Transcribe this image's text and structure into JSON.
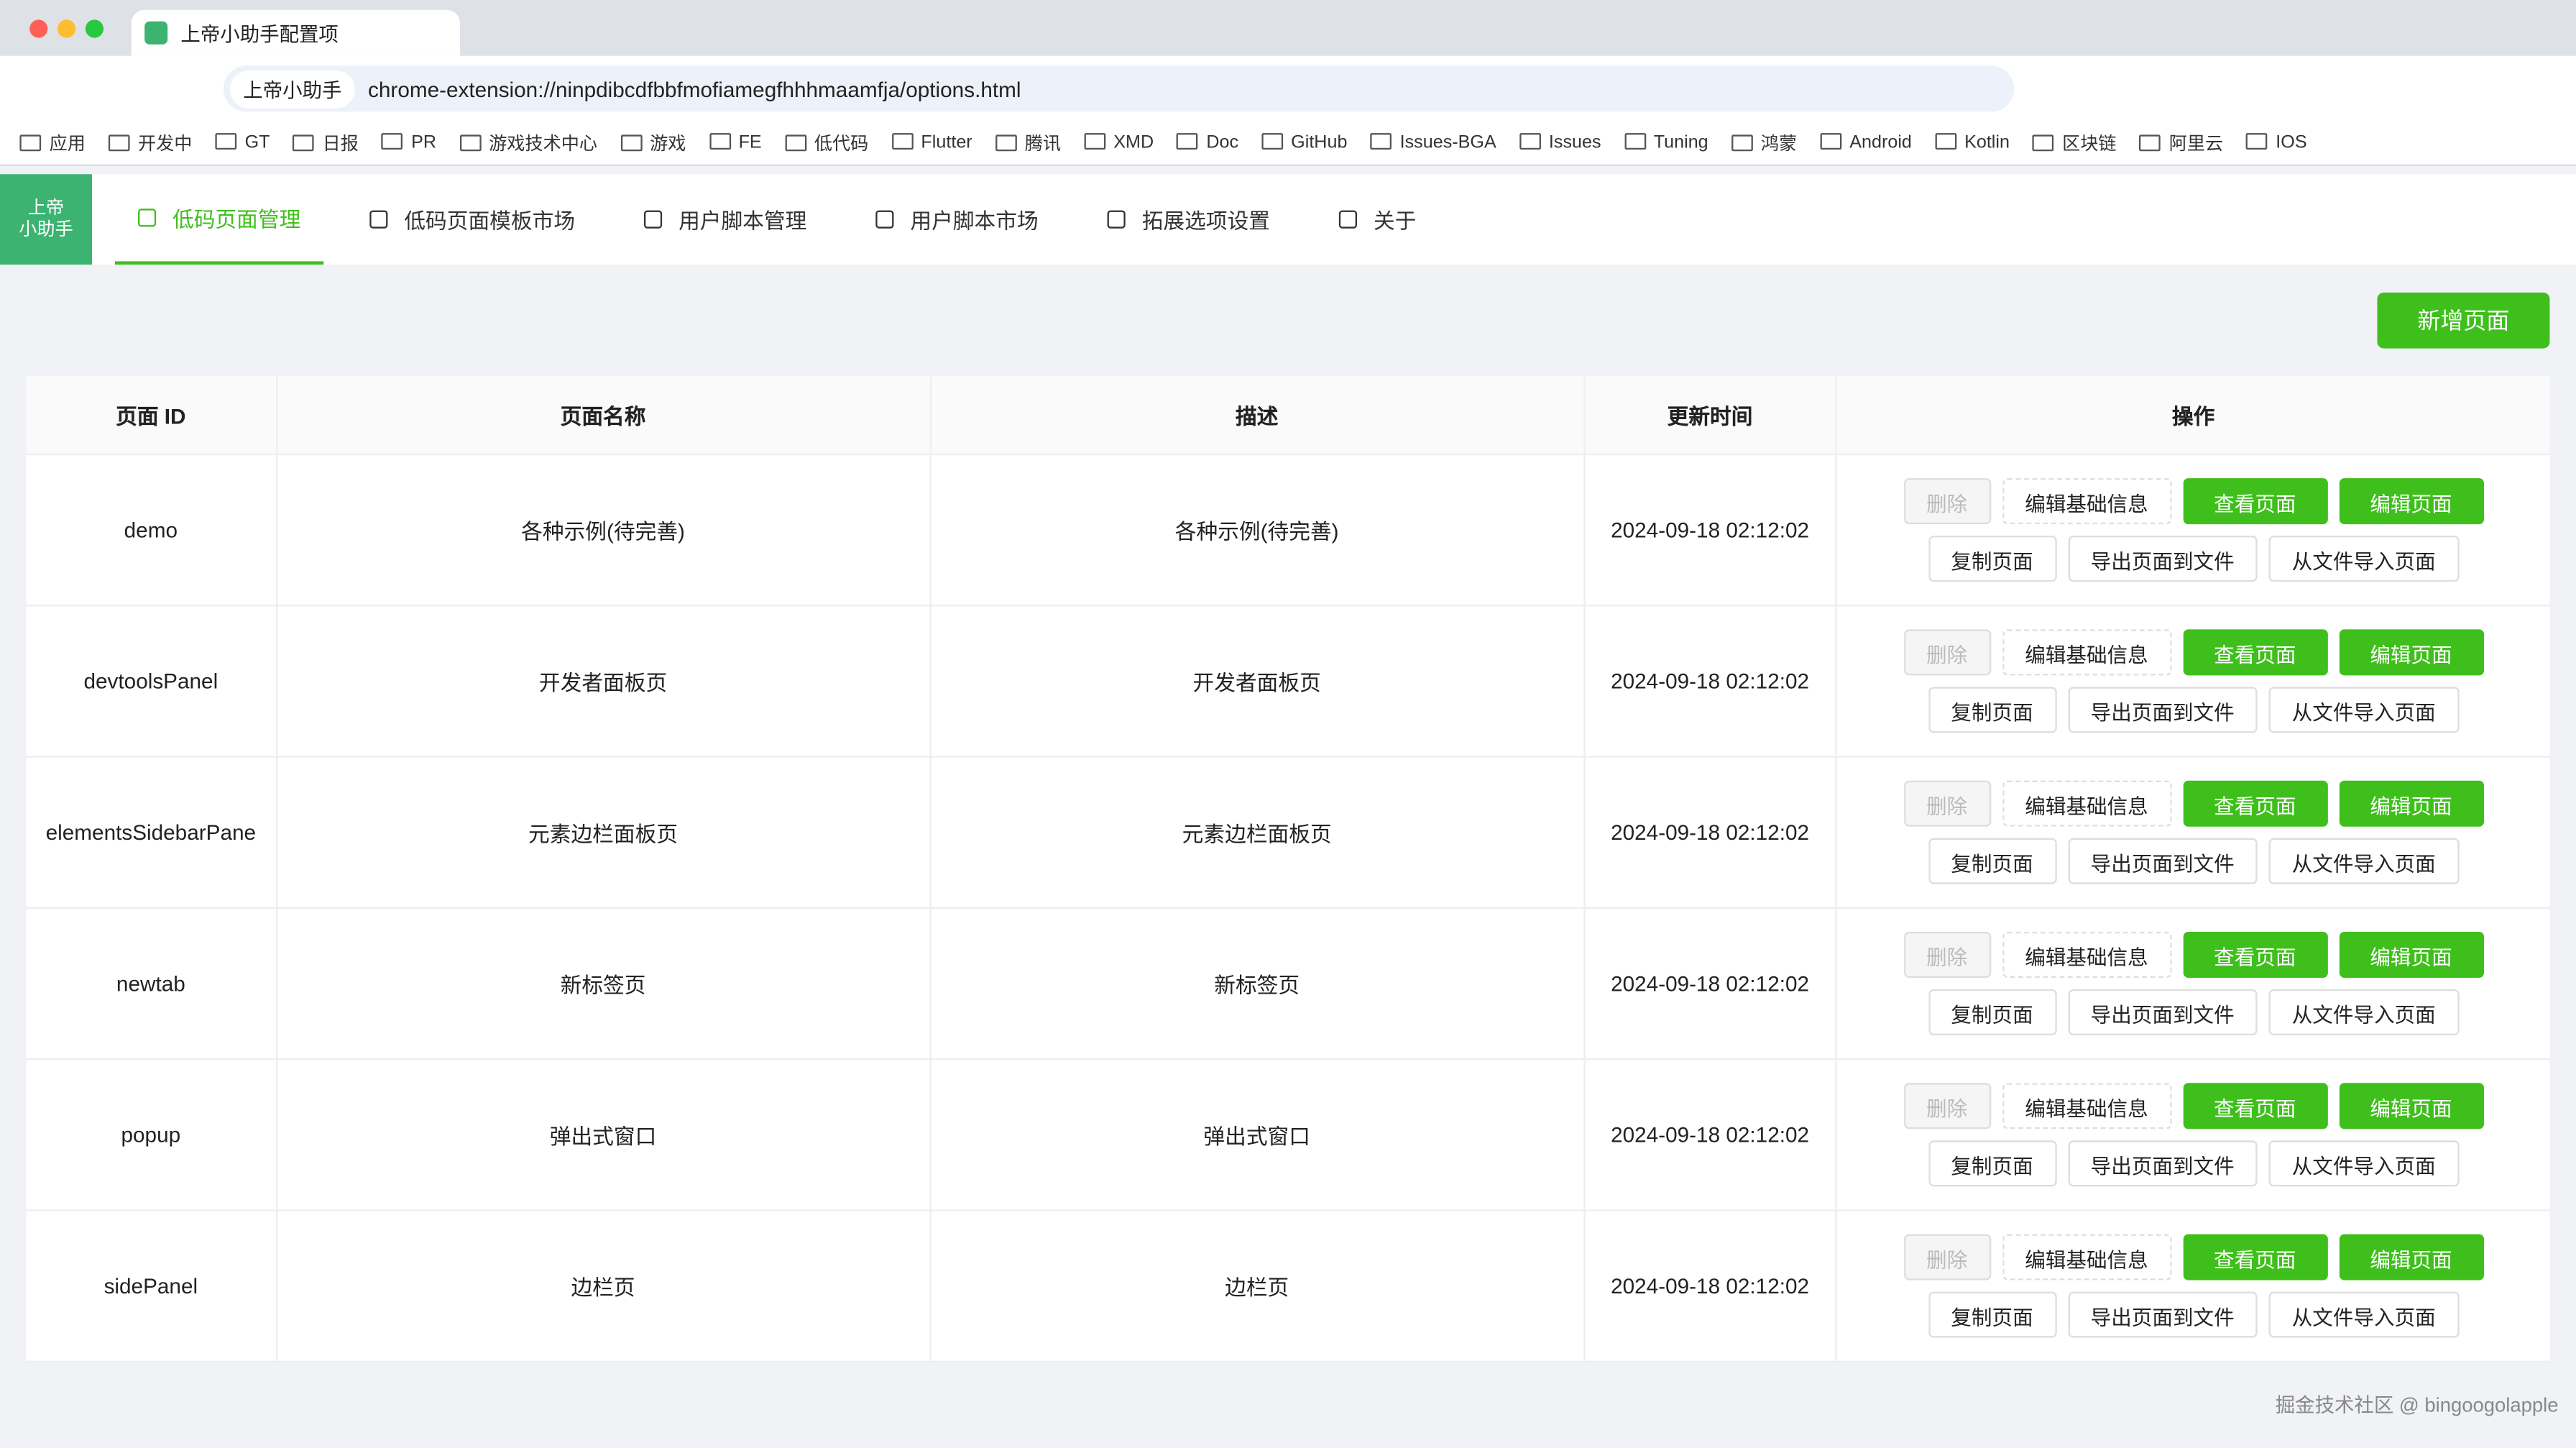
{
  "browser": {
    "tab_title": "上帝小助手配置项",
    "site_label": "上帝小助手",
    "url": "chrome-extension://ninpdibcdfbbfmofiamegfhhhmaamfja/options.html",
    "bookmarks": [
      "应用",
      "开发中",
      "GT",
      "日报",
      "PR",
      "游戏技术中心",
      "游戏",
      "FE",
      "低代码",
      "Flutter",
      "腾讯",
      "XMD",
      "Doc",
      "GitHub",
      "Issues-BGA",
      "Issues",
      "Tuning",
      "鸿蒙",
      "Android",
      "Kotlin",
      "区块链",
      "阿里云",
      "IOS"
    ]
  },
  "app": {
    "logo": [
      "上帝",
      "小助手"
    ],
    "tabs": [
      "低码页面管理",
      "低码页面模板市场",
      "用户脚本管理",
      "用户脚本市场",
      "拓展选项设置",
      "关于"
    ],
    "add_button": "新增页面"
  },
  "table": {
    "headers": [
      "页面 ID",
      "页面名称",
      "描述",
      "更新时间",
      "操作"
    ],
    "rows": [
      [
        "demo",
        "各种示例(待完善)",
        "各种示例(待完善)",
        "2024-09-18 02:12:02"
      ],
      [
        "devtoolsPanel",
        "开发者面板页",
        "开发者面板页",
        "2024-09-18 02:12:02"
      ],
      [
        "elementsSidebarPane",
        "元素边栏面板页",
        "元素边栏面板页",
        "2024-09-18 02:12:02"
      ],
      [
        "newtab",
        "新标签页",
        "新标签页",
        "2024-09-18 02:12:02"
      ],
      [
        "popup",
        "弹出式窗口",
        "弹出式窗口",
        "2024-09-18 02:12:02"
      ],
      [
        "sidePanel",
        "边栏页",
        "边栏页",
        "2024-09-18 02:12:02"
      ]
    ],
    "actions": [
      "删除",
      "编辑基础信息",
      "查看页面",
      "编辑页面",
      "复制页面",
      "导出页面到文件",
      "从文件导入页面"
    ]
  },
  "footer": {
    "watermark": "掘金技术社区 @ bingoogolapple"
  }
}
